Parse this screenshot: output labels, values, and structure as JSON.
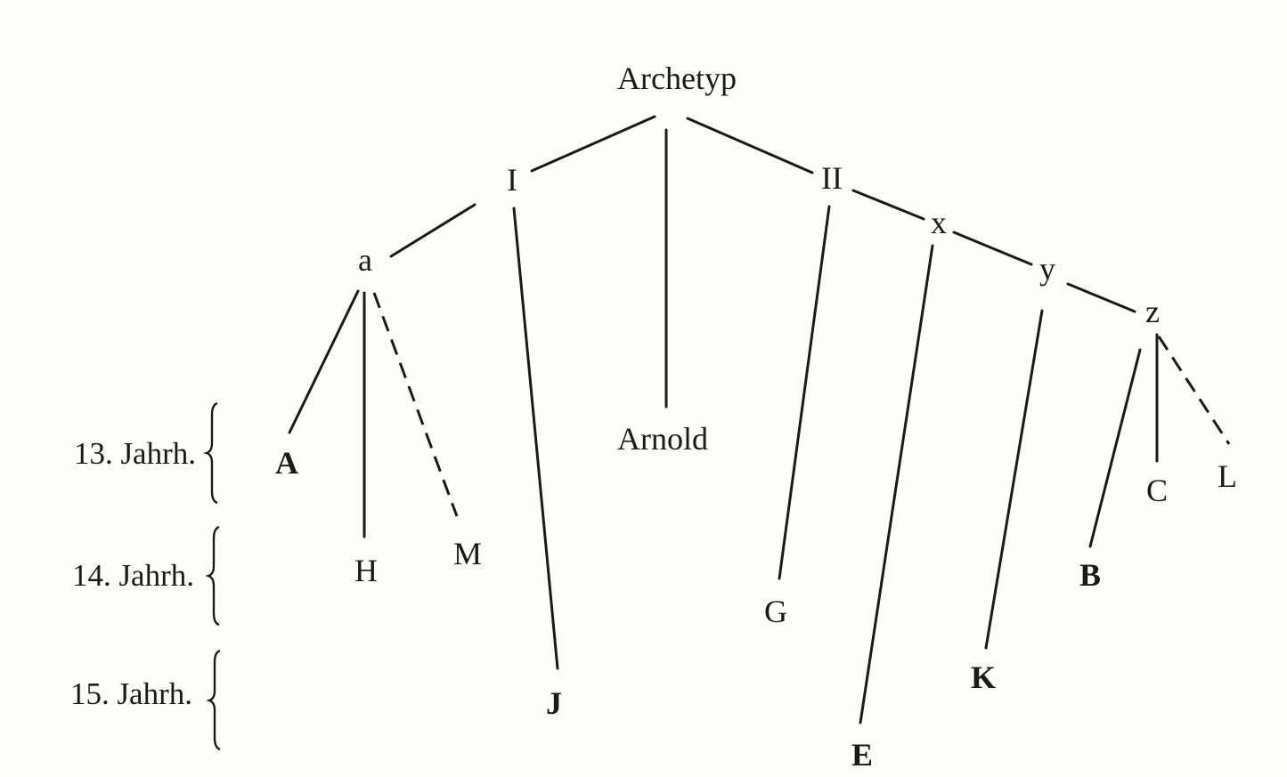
{
  "nodes": {
    "archetyp": "Archetyp",
    "I": "I",
    "II": "II",
    "a": "a",
    "x": "x",
    "y": "y",
    "z": "z",
    "A": "A",
    "H": "H",
    "M": "M",
    "J": "J",
    "arnold": "Arnold",
    "G": "G",
    "E": "E",
    "K": "K",
    "B": "B",
    "C": "C",
    "L": "L"
  },
  "centuries": {
    "c13": "13. Jahrh.",
    "c14": "14. Jahrh.",
    "c15": "15. Jahrh."
  },
  "edges": [
    {
      "from": "archetyp",
      "to": "I",
      "style": "solid"
    },
    {
      "from": "archetyp",
      "to": "arnold",
      "style": "solid"
    },
    {
      "from": "archetyp",
      "to": "II",
      "style": "solid"
    },
    {
      "from": "I",
      "to": "a",
      "style": "solid"
    },
    {
      "from": "I",
      "to": "J",
      "style": "solid"
    },
    {
      "from": "a",
      "to": "A",
      "style": "solid"
    },
    {
      "from": "a",
      "to": "H",
      "style": "solid"
    },
    {
      "from": "a",
      "to": "M",
      "style": "dashed"
    },
    {
      "from": "II",
      "to": "x",
      "style": "solid"
    },
    {
      "from": "II",
      "to": "G",
      "style": "solid"
    },
    {
      "from": "x",
      "to": "y",
      "style": "solid"
    },
    {
      "from": "x",
      "to": "E",
      "style": "solid"
    },
    {
      "from": "y",
      "to": "z",
      "style": "solid"
    },
    {
      "from": "y",
      "to": "K",
      "style": "solid"
    },
    {
      "from": "z",
      "to": "B",
      "style": "solid"
    },
    {
      "from": "z",
      "to": "C",
      "style": "solid"
    },
    {
      "from": "z",
      "to": "L",
      "style": "dashed"
    }
  ]
}
